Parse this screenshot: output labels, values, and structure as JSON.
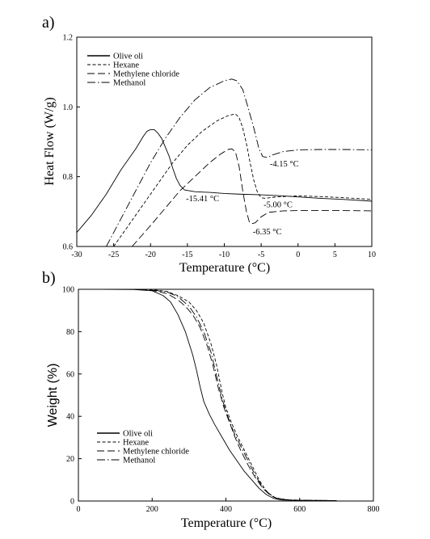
{
  "chart_data": [
    {
      "panel_label": "a)",
      "type": "line",
      "xlabel": "Temperature (°C)",
      "ylabel": "Heat Flow (W/g)",
      "xlim": [
        -30,
        10
      ],
      "ylim": [
        0.6,
        1.2
      ],
      "x_ticks": [
        -30,
        -25,
        -20,
        -15,
        -10,
        -5,
        0,
        5,
        10
      ],
      "x_tick_labels": [
        "-30",
        "-25",
        "-20",
        "-15",
        "-10",
        "-5",
        "0",
        "5",
        "10"
      ],
      "y_ticks": [
        0.6,
        0.8,
        1.0,
        1.2
      ],
      "y_tick_labels": [
        "0.6",
        "0.8",
        "1.0",
        "1.2"
      ],
      "legend_position": "top-left",
      "series": [
        {
          "name": "Olive oli",
          "style": "solid",
          "points": [
            [
              -30,
              0.64
            ],
            [
              -28,
              0.69
            ],
            [
              -26,
              0.75
            ],
            [
              -24,
              0.82
            ],
            [
              -22,
              0.88
            ],
            [
              -21,
              0.915
            ],
            [
              -20.5,
              0.93
            ],
            [
              -20,
              0.935
            ],
            [
              -19.5,
              0.935
            ],
            [
              -19,
              0.925
            ],
            [
              -18.5,
              0.91
            ],
            [
              -18,
              0.885
            ],
            [
              -17.5,
              0.86
            ],
            [
              -17,
              0.825
            ],
            [
              -16.5,
              0.795
            ],
            [
              -16,
              0.775
            ],
            [
              -15.4,
              0.762
            ],
            [
              -14,
              0.757
            ],
            [
              -12,
              0.755
            ],
            [
              -10,
              0.752
            ],
            [
              -8,
              0.75
            ],
            [
              -5,
              0.748
            ],
            [
              -2,
              0.745
            ],
            [
              0,
              0.742
            ],
            [
              3,
              0.738
            ],
            [
              6,
              0.735
            ],
            [
              10,
              0.73
            ]
          ]
        },
        {
          "name": "Hexane",
          "style": "dashed",
          "points": [
            [
              -25,
              0.6
            ],
            [
              -23,
              0.66
            ],
            [
              -21,
              0.72
            ],
            [
              -19,
              0.78
            ],
            [
              -17,
              0.84
            ],
            [
              -15,
              0.89
            ],
            [
              -13,
              0.93
            ],
            [
              -11,
              0.96
            ],
            [
              -9.5,
              0.975
            ],
            [
              -8.5,
              0.98
            ],
            [
              -8,
              0.97
            ],
            [
              -7.5,
              0.94
            ],
            [
              -7,
              0.895
            ],
            [
              -6.5,
              0.84
            ],
            [
              -6,
              0.79
            ],
            [
              -5.5,
              0.755
            ],
            [
              -5,
              0.74
            ],
            [
              -4.5,
              0.738
            ],
            [
              -3,
              0.742
            ],
            [
              0,
              0.745
            ],
            [
              3,
              0.743
            ],
            [
              6,
              0.74
            ],
            [
              10,
              0.735
            ]
          ]
        },
        {
          "name": "Methylene chloride",
          "style": "long-dash",
          "points": [
            [
              -22.5,
              0.6
            ],
            [
              -20,
              0.66
            ],
            [
              -18,
              0.71
            ],
            [
              -16,
              0.76
            ],
            [
              -14,
              0.8
            ],
            [
              -12,
              0.84
            ],
            [
              -10.5,
              0.865
            ],
            [
              -9.5,
              0.878
            ],
            [
              -9,
              0.88
            ],
            [
              -8.5,
              0.872
            ],
            [
              -8,
              0.83
            ],
            [
              -7.5,
              0.76
            ],
            [
              -7,
              0.7
            ],
            [
              -6.6,
              0.67
            ],
            [
              -6.35,
              0.665
            ],
            [
              -5.8,
              0.668
            ],
            [
              -5,
              0.685
            ],
            [
              -4,
              0.698
            ],
            [
              -2,
              0.702
            ],
            [
              0,
              0.703
            ],
            [
              3,
              0.703
            ],
            [
              6,
              0.703
            ],
            [
              10,
              0.702
            ]
          ]
        },
        {
          "name": "Methanol",
          "style": "dash-dot",
          "points": [
            [
              -26,
              0.6
            ],
            [
              -24,
              0.68
            ],
            [
              -22,
              0.76
            ],
            [
              -20,
              0.84
            ],
            [
              -18,
              0.91
            ],
            [
              -16,
              0.97
            ],
            [
              -14,
              1.02
            ],
            [
              -12,
              1.055
            ],
            [
              -10,
              1.075
            ],
            [
              -9,
              1.08
            ],
            [
              -8.3,
              1.075
            ],
            [
              -7.5,
              1.05
            ],
            [
              -6.8,
              1.0
            ],
            [
              -6,
              0.94
            ],
            [
              -5.3,
              0.88
            ],
            [
              -4.8,
              0.858
            ],
            [
              -4.15,
              0.855
            ],
            [
              -3.5,
              0.862
            ],
            [
              -2,
              0.872
            ],
            [
              0,
              0.877
            ],
            [
              3,
              0.878
            ],
            [
              6,
              0.878
            ],
            [
              10,
              0.877
            ]
          ]
        }
      ],
      "annotations": [
        {
          "text": "-4.15 °C",
          "x": -4.15,
          "y": 0.855
        },
        {
          "text": "-15.41 °C",
          "x": -15.41,
          "y": 0.762
        },
        {
          "text": "-5.00 °C",
          "x": -5.0,
          "y": 0.74
        },
        {
          "text": "-6.35 °C",
          "x": -6.35,
          "y": 0.665
        }
      ]
    },
    {
      "panel_label": "b)",
      "type": "line",
      "xlabel": "Temperature (°C)",
      "ylabel": "Weight (%)",
      "xlim": [
        0,
        800
      ],
      "ylim": [
        0,
        100
      ],
      "x_ticks": [
        0,
        200,
        400,
        600,
        800
      ],
      "x_tick_labels": [
        "0",
        "200",
        "400",
        "600",
        "800"
      ],
      "y_ticks": [
        0,
        20,
        40,
        60,
        80,
        100
      ],
      "y_tick_labels": [
        "0",
        "20",
        "40",
        "60",
        "80",
        "100"
      ],
      "legend_position": "bottom-left",
      "series": [
        {
          "name": "Olive oli",
          "style": "solid",
          "points": [
            [
              50,
              100
            ],
            [
              150,
              99.9
            ],
            [
              200,
              99.3
            ],
            [
              230,
              97
            ],
            [
              250,
              94
            ],
            [
              270,
              88
            ],
            [
              290,
              80
            ],
            [
              310,
              69
            ],
            [
              320,
              62
            ],
            [
              330,
              54
            ],
            [
              340,
              47
            ],
            [
              355,
              41
            ],
            [
              370,
              36
            ],
            [
              390,
              30
            ],
            [
              410,
              24
            ],
            [
              430,
              19
            ],
            [
              450,
              14
            ],
            [
              470,
              10
            ],
            [
              490,
              6
            ],
            [
              510,
              3
            ],
            [
              530,
              1.2
            ],
            [
              550,
              0.5
            ],
            [
              600,
              0.3
            ],
            [
              700,
              0.2
            ]
          ]
        },
        {
          "name": "Hexane",
          "style": "dashed",
          "points": [
            [
              50,
              100
            ],
            [
              150,
              100
            ],
            [
              200,
              99.8
            ],
            [
              240,
              99
            ],
            [
              270,
              97
            ],
            [
              300,
              94
            ],
            [
              320,
              90
            ],
            [
              340,
              84
            ],
            [
              360,
              74
            ],
            [
              375,
              64
            ],
            [
              390,
              51
            ],
            [
              400,
              44
            ],
            [
              415,
              37
            ],
            [
              430,
              31
            ],
            [
              450,
              24
            ],
            [
              470,
              17
            ],
            [
              490,
              10
            ],
            [
              510,
              4.5
            ],
            [
              530,
              1.8
            ],
            [
              560,
              0.6
            ],
            [
              620,
              0.3
            ],
            [
              700,
              0.2
            ]
          ]
        },
        {
          "name": "Methylene chloride",
          "style": "long-dash",
          "points": [
            [
              50,
              100
            ],
            [
              150,
              100
            ],
            [
              200,
              99.5
            ],
            [
              240,
              98
            ],
            [
              270,
              95
            ],
            [
              290,
              92
            ],
            [
              310,
              88
            ],
            [
              330,
              82
            ],
            [
              350,
              73
            ],
            [
              365,
              64
            ],
            [
              380,
              53
            ],
            [
              395,
              44
            ],
            [
              410,
              37
            ],
            [
              425,
              30
            ],
            [
              440,
              24
            ],
            [
              460,
              17
            ],
            [
              480,
              11
            ],
            [
              500,
              6
            ],
            [
              520,
              2.8
            ],
            [
              540,
              1
            ],
            [
              580,
              0.4
            ],
            [
              700,
              0.2
            ]
          ]
        },
        {
          "name": "Methanol",
          "style": "dash-dot",
          "points": [
            [
              50,
              100
            ],
            [
              150,
              100
            ],
            [
              200,
              99.6
            ],
            [
              240,
              98.8
            ],
            [
              270,
              96.5
            ],
            [
              300,
              92
            ],
            [
              320,
              87
            ],
            [
              340,
              80
            ],
            [
              360,
              70
            ],
            [
              375,
              59
            ],
            [
              390,
              48
            ],
            [
              405,
              40
            ],
            [
              420,
              33
            ],
            [
              440,
              26
            ],
            [
              460,
              19
            ],
            [
              480,
              12
            ],
            [
              500,
              6.5
            ],
            [
              520,
              3
            ],
            [
              540,
              1.2
            ],
            [
              580,
              0.4
            ],
            [
              700,
              0.2
            ]
          ]
        }
      ],
      "annotations": []
    }
  ]
}
